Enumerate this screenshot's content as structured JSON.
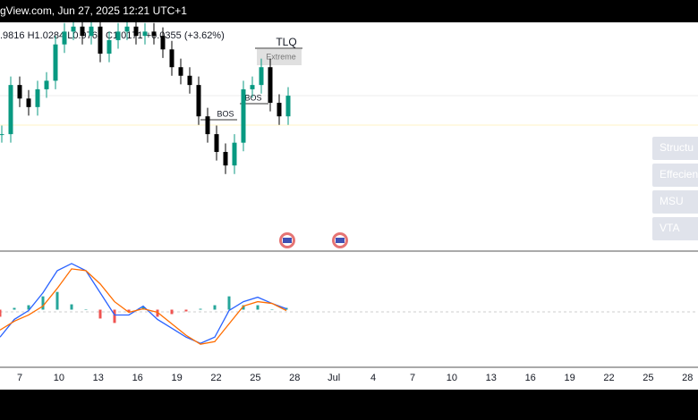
{
  "header": {
    "source": "gView.com, Jun 27, 2025 12:21 UTC+1",
    "ohlc": ".9816  H1.0284  L0.9768  C1.0171  +0.0355 (+3.62%)"
  },
  "annotations": [
    "TLQ",
    "Extreme",
    "BOS",
    "BOS"
  ],
  "buttons": [
    "Structu",
    "Effecien",
    "MSU",
    "VTA"
  ],
  "chart_data": {
    "type": "candlestick",
    "ylim": [
      0.8,
      1.12
    ],
    "up_color": "#089981",
    "down_color": "#000000",
    "close": [
      0.963,
      1.032,
      1.013,
      1.001,
      1.026,
      1.038,
      1.089,
      1.107,
      1.114,
      1.101,
      1.114,
      1.076,
      1.095,
      1.107,
      1.114,
      1.101,
      1.107,
      1.101,
      1.082,
      1.057,
      1.045,
      1.032,
      0.988,
      0.963,
      0.938,
      0.919,
      0.951,
      1.026,
      1.032,
      1.057,
      1.007,
      0.988,
      1.017
    ],
    "high": [
      0.975,
      1.044,
      1.044,
      1.025,
      1.038,
      1.05,
      1.101,
      1.119,
      1.126,
      1.126,
      1.126,
      1.126,
      1.107,
      1.119,
      1.126,
      1.126,
      1.119,
      1.119,
      1.113,
      1.094,
      1.069,
      1.057,
      1.044,
      1.0,
      0.975,
      0.95,
      0.963,
      1.038,
      1.044,
      1.069,
      1.069,
      1.019,
      1.029
    ],
    "low": [
      0.951,
      0.951,
      1.001,
      0.989,
      0.989,
      1.014,
      1.026,
      1.077,
      1.095,
      1.089,
      1.089,
      1.064,
      1.064,
      1.083,
      1.095,
      1.089,
      1.089,
      1.089,
      1.07,
      1.045,
      1.033,
      1.02,
      0.976,
      0.951,
      0.926,
      0.907,
      0.907,
      0.939,
      1.014,
      1.02,
      0.995,
      0.976,
      0.976
    ],
    "macd_ylim": [
      -0.064,
      0.061
    ],
    "macd": {
      "name": "MACD",
      "color": "#2962ff",
      "values": [
        -0.031,
        -0.011,
        -0.001,
        0.019,
        0.044,
        0.052,
        0.044,
        0.019,
        -0.006,
        -0.006,
        0.004,
        -0.011,
        -0.021,
        -0.031,
        -0.038,
        -0.031,
        -0.001,
        0.009,
        0.014,
        0.007,
        0.001
      ]
    },
    "signal": {
      "name": "Signal",
      "color": "#ff6d00",
      "values": [
        -0.023,
        -0.013,
        -0.006,
        0.004,
        0.024,
        0.046,
        0.044,
        0.029,
        0.009,
        -0.003,
        0.001,
        -0.003,
        -0.016,
        -0.029,
        -0.039,
        -0.036,
        -0.016,
        0.004,
        0.009,
        0.007,
        -0.001
      ]
    },
    "histogram": {
      "name": "Histogram",
      "up_color": "#26a69a",
      "down_color": "#ef5350",
      "values": [
        -0.008,
        0.002,
        0.005,
        0.015,
        0.02,
        0.006,
        0,
        -0.01,
        -0.015,
        -0.003,
        0.003,
        -0.008,
        -0.005,
        -0.002,
        0.001,
        0.005,
        0.015,
        0.005,
        0.005,
        0,
        0.002
      ]
    },
    "x_labels": [
      "7",
      "10",
      "13",
      "16",
      "19",
      "22",
      "25",
      "28",
      "Jul",
      "4",
      "7",
      "10",
      "13",
      "16",
      "19",
      "22",
      "25",
      "28"
    ]
  }
}
